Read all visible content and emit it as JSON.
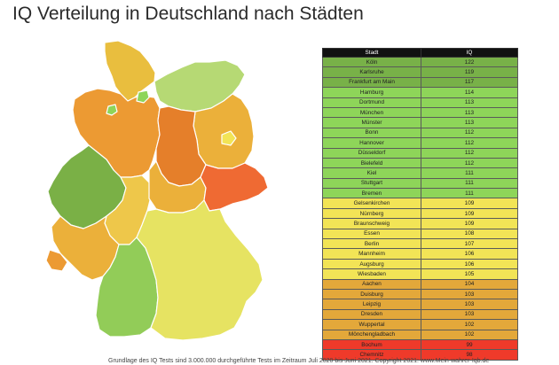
{
  "title": "IQ Verteilung in Deutschland nach Städten",
  "footnote": "Grundlage des IQ Tests sind 3.000.000 durchgeführte Tests im Zeitraum Juli 2020 bis Juni 2021. Copyright 2021: www.Mein-wahrer-Iqb.de",
  "chart_data": {
    "type": "table",
    "columns": [
      "Stadt",
      "IQ"
    ],
    "rows": [
      {
        "city": "Köln",
        "iq": "122",
        "color": "#78b148"
      },
      {
        "city": "Karlsruhe",
        "iq": "119",
        "color": "#78b148"
      },
      {
        "city": "Frankfurt am Main",
        "iq": "117",
        "color": "#78b148"
      },
      {
        "city": "Hamburg",
        "iq": "114",
        "color": "#8ed559"
      },
      {
        "city": "Dortmund",
        "iq": "113",
        "color": "#8ed559"
      },
      {
        "city": "München",
        "iq": "113",
        "color": "#8ed559"
      },
      {
        "city": "Münster",
        "iq": "113",
        "color": "#8ed559"
      },
      {
        "city": "Bonn",
        "iq": "112",
        "color": "#8ed559"
      },
      {
        "city": "Hannover",
        "iq": "112",
        "color": "#8ed559"
      },
      {
        "city": "Düsseldorf",
        "iq": "112",
        "color": "#8ed559"
      },
      {
        "city": "Bielefeld",
        "iq": "112",
        "color": "#8ed559"
      },
      {
        "city": "Kiel",
        "iq": "111",
        "color": "#8ed559"
      },
      {
        "city": "Stuttgart",
        "iq": "111",
        "color": "#8ed559"
      },
      {
        "city": "Bremen",
        "iq": "111",
        "color": "#8ed559"
      },
      {
        "city": "Gelsenkirchen",
        "iq": "109",
        "color": "#f2e456"
      },
      {
        "city": "Nürnberg",
        "iq": "109",
        "color": "#f2e456"
      },
      {
        "city": "Braunschweig",
        "iq": "109",
        "color": "#f2e456"
      },
      {
        "city": "Essen",
        "iq": "108",
        "color": "#f2e456"
      },
      {
        "city": "Berlin",
        "iq": "107",
        "color": "#f2e456"
      },
      {
        "city": "Mannheim",
        "iq": "106",
        "color": "#f2e456"
      },
      {
        "city": "Augsburg",
        "iq": "106",
        "color": "#f2e456"
      },
      {
        "city": "Wiesbaden",
        "iq": "105",
        "color": "#f2e456"
      },
      {
        "city": "Aachen",
        "iq": "104",
        "color": "#e3a83a"
      },
      {
        "city": "Duisburg",
        "iq": "103",
        "color": "#e3a83a"
      },
      {
        "city": "Leipzig",
        "iq": "103",
        "color": "#e3a83a"
      },
      {
        "city": "Dresden",
        "iq": "103",
        "color": "#e3a83a"
      },
      {
        "city": "Wuppertal",
        "iq": "102",
        "color": "#e3a83a"
      },
      {
        "city": "Mönchengladbach",
        "iq": "102",
        "color": "#e3a83a"
      },
      {
        "city": "Bochum",
        "iq": "99",
        "color": "#ef3a2a"
      },
      {
        "city": "Chemnitz",
        "iq": "98",
        "color": "#ef3a2a"
      }
    ]
  },
  "map_colors": {
    "schleswig_holstein": "#e9be3e",
    "hamburg": "#8ed559",
    "mecklenburg_vorpommern": "#b6d974",
    "bremen": "#8ed559",
    "niedersachsen": "#ec9a33",
    "berlin": "#f2e456",
    "brandenburg": "#ebb03a",
    "sachsen_anhalt": "#e57f2a",
    "nordrhein_westfalen": "#7ab046",
    "hessen": "#eec74a",
    "thueringen": "#ebb03a",
    "sachsen": "#ef6a33",
    "rheinland_pfalz": "#ebb03a",
    "saarland": "#ec9a33",
    "baden_wuerttemberg": "#92cc58",
    "bayern": "#e6e362"
  }
}
